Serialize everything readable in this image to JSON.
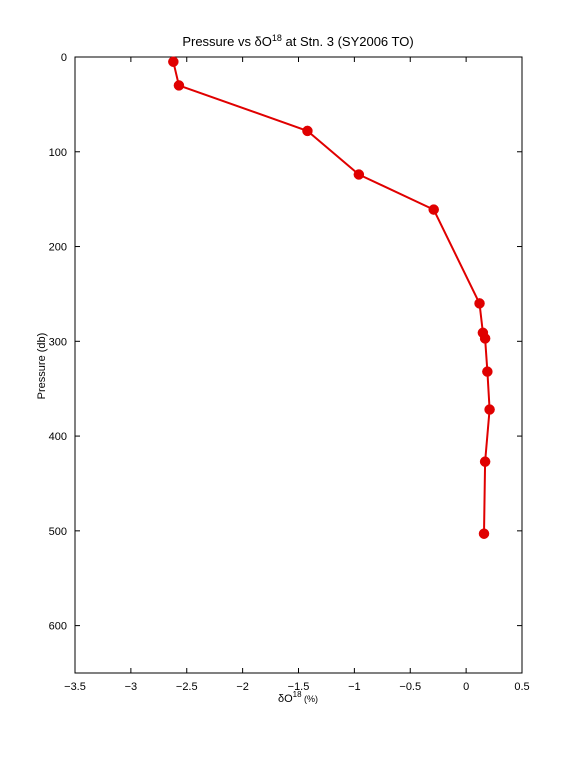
{
  "chart_data": {
    "type": "line",
    "title": {
      "prefix": "Pressure vs δO",
      "superscript": "18",
      "suffix": " at Stn. 3 (SY2006 TO)"
    },
    "xlabel": {
      "prefix": "δO",
      "superscript": "18",
      "suffix": " (%)"
    },
    "ylabel": "Pressure (db)",
    "xlim": [
      -3.5,
      0.5
    ],
    "ylim": [
      0,
      650
    ],
    "y_reversed": true,
    "grid": false,
    "xticks": [
      -3.5,
      -3,
      -2.5,
      -2,
      -1.5,
      -1,
      -0.5,
      0,
      0.5
    ],
    "xtick_labels": [
      "−3.5",
      "−3",
      "−2.5",
      "−2",
      "−1.5",
      "−1",
      "−0.5",
      "0",
      "0.5"
    ],
    "yticks": [
      0,
      100,
      200,
      300,
      400,
      500,
      600
    ],
    "ytick_labels": [
      "0",
      "100",
      "200",
      "300",
      "400",
      "500",
      "600"
    ],
    "series": [
      {
        "color": "#e00000",
        "points": [
          {
            "x": -2.62,
            "y": 5
          },
          {
            "x": -2.57,
            "y": 30
          },
          {
            "x": -1.42,
            "y": 78
          },
          {
            "x": -0.96,
            "y": 124
          },
          {
            "x": -0.29,
            "y": 161
          },
          {
            "x": 0.12,
            "y": 260
          },
          {
            "x": 0.15,
            "y": 291
          },
          {
            "x": 0.17,
            "y": 297
          },
          {
            "x": 0.19,
            "y": 332
          },
          {
            "x": 0.21,
            "y": 372
          },
          {
            "x": 0.17,
            "y": 427
          },
          {
            "x": 0.16,
            "y": 503
          }
        ]
      }
    ]
  }
}
